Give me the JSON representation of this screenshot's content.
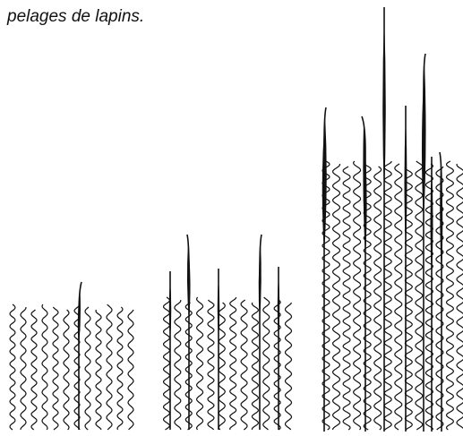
{
  "caption": "pelages de lapins."
}
